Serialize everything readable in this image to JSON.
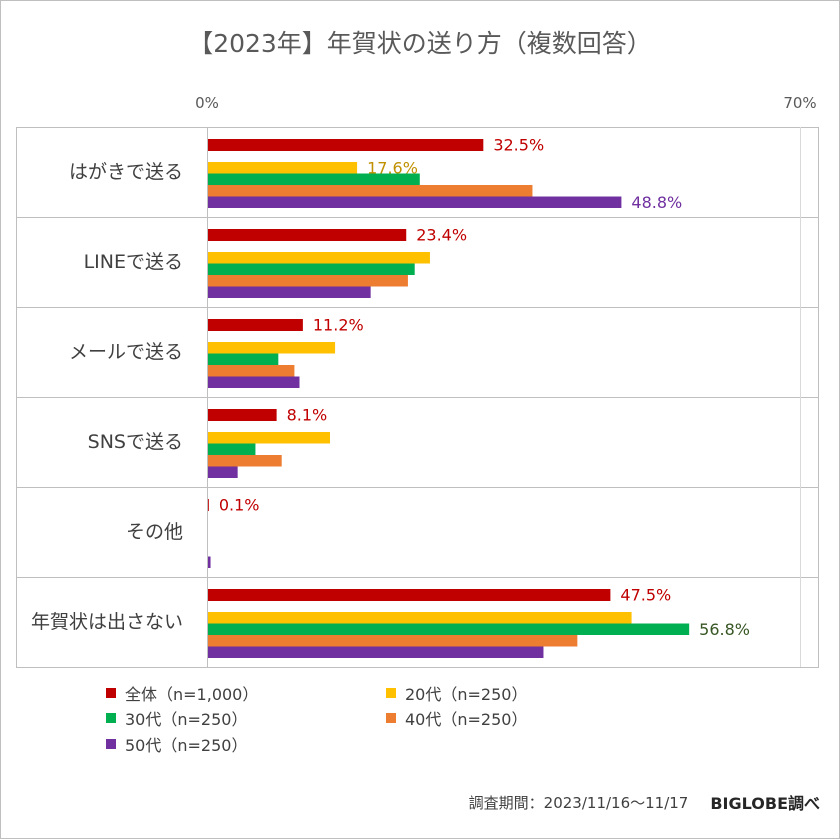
{
  "chart_data": {
    "type": "bar",
    "orientation": "horizontal",
    "title": "【2023年】年賀状の送り方（複数回答）",
    "categories": [
      "はがきで送る",
      "LINEで送る",
      "メールで送る",
      "SNSで送る",
      "その他",
      "年賀状は出さない"
    ],
    "xlim": [
      0,
      70
    ],
    "x_tick_labels": [
      "0%",
      "70%"
    ],
    "grid": false,
    "legend_position": "bottom",
    "series": [
      {
        "name": "全体（n=1,000）",
        "color": "#c00000",
        "label_color": "#c00000",
        "values": [
          32.5,
          23.4,
          11.2,
          8.1,
          0.1,
          47.5
        ],
        "data_labels": [
          "32.5%",
          "23.4%",
          "11.2%",
          "8.1%",
          "0.1%",
          "47.5%"
        ]
      },
      {
        "name": "20代（n=250）",
        "color": "#ffc000",
        "label_color": "#bf9000",
        "values": [
          17.6,
          26.2,
          15.0,
          14.4,
          0,
          50.0
        ],
        "data_labels": [
          "17.6%",
          null,
          null,
          null,
          null,
          null
        ]
      },
      {
        "name": "30代（n=250）",
        "color": "#00b050",
        "label_color": "#375623",
        "values": [
          25.0,
          24.4,
          8.3,
          5.6,
          0,
          56.8
        ],
        "data_labels": [
          null,
          null,
          null,
          null,
          null,
          "56.8%"
        ]
      },
      {
        "name": "40代（n=250）",
        "color": "#ed7d31",
        "values": [
          38.3,
          23.6,
          10.2,
          8.7,
          0,
          43.6
        ],
        "data_labels": [
          null,
          null,
          null,
          null,
          null,
          null
        ]
      },
      {
        "name": "50代（n=250）",
        "color": "#7030a0",
        "label_color": "#7030a0",
        "values": [
          48.8,
          19.2,
          10.8,
          3.5,
          0.3,
          39.6
        ],
        "data_labels": [
          "48.8%",
          null,
          null,
          null,
          null,
          null
        ]
      }
    ]
  },
  "footer": {
    "period": "調査期間：2023/11/16～11/17",
    "source": "BIGLOBE調べ"
  }
}
